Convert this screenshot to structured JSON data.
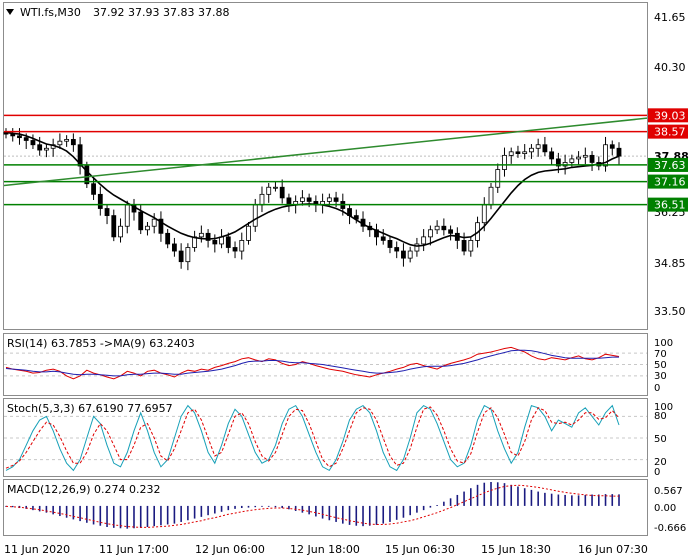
{
  "main": {
    "header": {
      "arrow_icon": "triangle-down-icon",
      "symbol": "WTI.fs,M30",
      "ohlc": "37.92 37.93 37.83 37.88"
    },
    "price_labels": [
      "41.65",
      "40.30",
      "36.25",
      "34.85",
      "33.50"
    ],
    "level_labels": [
      {
        "text": "39.03",
        "price": 39.03,
        "color": "#e00000"
      },
      {
        "text": "38.57",
        "price": 38.57,
        "color": "#e00000"
      },
      {
        "text": "37.88",
        "price": 37.88,
        "color": "#000000"
      },
      {
        "text": "37.63",
        "price": 37.63,
        "color": "#008000"
      },
      {
        "text": "37.16",
        "price": 37.16,
        "color": "#008000"
      },
      {
        "text": "36.51",
        "price": 36.51,
        "color": "#008000"
      }
    ]
  },
  "rsi": {
    "label": "RSI(14) 63.7853  ->MA(9) 63.2403",
    "scale_labels": [
      "100",
      "70",
      "50",
      "30",
      "0"
    ]
  },
  "stoch": {
    "label": "Stoch(5,3,3) 67.6190 77.6957",
    "scale_labels": [
      "100",
      "80",
      "50",
      "20",
      "0"
    ]
  },
  "macd": {
    "label": "MACD(12,26,9) 0.274 0.232",
    "scale_labels": [
      "0.567",
      "0.00",
      "-0.666"
    ]
  },
  "x_labels": [
    "11 Jun 2020",
    "11 Jun 17:00",
    "12 Jun 06:00",
    "12 Jun 18:00",
    "15 Jun 06:30",
    "15 Jun 18:30",
    "16 Jun 07:30"
  ],
  "colors": {
    "resistance": "#e00000",
    "support": "#008000",
    "trend": "#2e8b2e",
    "ma": "#000000",
    "rsi": "#e00000",
    "rsi_ma": "#1f1fb0",
    "stoch_main": "#17a0b8",
    "stoch_signal": "#e00000",
    "macd_hist": "#1a1a80",
    "macd_signal": "#e00000"
  },
  "chart_data": [
    {
      "type": "line",
      "name": "main",
      "xlabels": [
        "11 Jun 2020",
        "11 Jun 17:00",
        "12 Jun 06:00",
        "12 Jun 18:00",
        "15 Jun 06:30",
        "15 Jun 18:30",
        "16 Jun 07:30"
      ],
      "ylim": [
        33.0,
        42.2
      ],
      "y_ticks": [
        41.65,
        40.3,
        36.25,
        34.85,
        33.5
      ],
      "price": [
        38.5,
        38.45,
        38.4,
        38.32,
        38.2,
        38.05,
        38.1,
        38.2,
        38.3,
        38.35,
        38.2,
        37.6,
        37.1,
        36.8,
        36.4,
        36.2,
        35.6,
        35.9,
        36.5,
        36.3,
        35.8,
        35.9,
        36.1,
        35.7,
        35.4,
        35.2,
        34.9,
        35.3,
        35.6,
        35.7,
        35.5,
        35.4,
        35.6,
        35.3,
        35.2,
        35.5,
        35.9,
        36.5,
        36.8,
        37.0,
        37.0,
        36.7,
        36.5,
        36.6,
        36.7,
        36.6,
        36.5,
        36.6,
        36.7,
        36.6,
        36.4,
        36.2,
        36.1,
        35.9,
        35.8,
        35.6,
        35.5,
        35.3,
        35.2,
        35.0,
        35.2,
        35.4,
        35.6,
        35.8,
        35.9,
        35.8,
        35.7,
        35.5,
        35.2,
        35.5,
        36.0,
        36.5,
        37.0,
        37.5,
        37.9,
        38.0,
        37.95,
        38.0,
        38.1,
        38.2,
        38.0,
        37.8,
        37.6,
        37.7,
        37.8,
        37.85,
        37.9,
        37.7,
        37.6,
        38.2,
        38.1,
        37.88
      ],
      "ma": [
        38.55,
        38.52,
        38.5,
        38.45,
        38.38,
        38.3,
        38.22,
        38.18,
        38.12,
        38.02,
        37.86,
        37.66,
        37.45,
        37.26,
        37.08,
        36.92,
        36.78,
        36.67,
        36.56,
        36.45,
        36.34,
        36.24,
        36.14,
        36.02,
        35.9,
        35.8,
        35.7,
        35.63,
        35.58,
        35.55,
        35.54,
        35.55,
        35.6,
        35.66,
        35.74,
        35.86,
        35.98,
        36.1,
        36.2,
        36.3,
        36.38,
        36.44,
        36.48,
        36.5,
        36.52,
        36.53,
        36.52,
        36.5,
        36.46,
        36.4,
        36.32,
        36.2,
        36.08,
        35.96,
        35.86,
        35.78,
        35.7,
        35.62,
        35.55,
        35.46,
        35.38,
        35.34,
        35.36,
        35.42,
        35.5,
        35.58,
        35.64,
        35.62,
        35.58,
        35.6,
        35.72,
        35.9,
        36.12,
        36.36,
        36.6,
        36.84,
        37.05,
        37.22,
        37.34,
        37.42,
        37.46,
        37.48,
        37.5,
        37.52,
        37.56,
        37.58,
        37.6,
        37.62,
        37.66,
        37.7,
        37.8,
        37.88
      ],
      "levels": {
        "resistance": [
          39.03,
          38.57
        ],
        "support": [
          37.63,
          37.16,
          36.51
        ],
        "last": 37.88
      },
      "trendline": [
        [
          0,
          37.05
        ],
        [
          1,
          38.95
        ]
      ]
    },
    {
      "type": "line",
      "name": "RSI(14)",
      "ylim": [
        0,
        100
      ],
      "levels": [
        100,
        70,
        50,
        30,
        0
      ],
      "series": [
        {
          "name": "RSI(14)",
          "values": [
            45,
            42,
            40,
            38,
            35,
            36,
            40,
            42,
            38,
            30,
            25,
            30,
            40,
            35,
            32,
            28,
            25,
            30,
            38,
            35,
            30,
            38,
            40,
            35,
            32,
            28,
            35,
            40,
            38,
            42,
            40,
            45,
            48,
            52,
            55,
            60,
            62,
            58,
            55,
            60,
            58,
            52,
            48,
            50,
            55,
            52,
            48,
            45,
            42,
            40,
            38,
            35,
            32,
            30,
            28,
            32,
            35,
            38,
            42,
            45,
            50,
            52,
            48,
            45,
            42,
            48,
            52,
            55,
            58,
            62,
            68,
            70,
            72,
            75,
            78,
            80,
            76,
            72,
            65,
            60,
            58,
            62,
            60,
            58,
            62,
            65,
            60,
            58,
            62,
            68,
            66,
            64
          ]
        },
        {
          "name": "MA(9)",
          "values": [
            43,
            42,
            41,
            40,
            38,
            37,
            37,
            38,
            37,
            35,
            33,
            32,
            33,
            33,
            32,
            31,
            30,
            30,
            32,
            33,
            33,
            34,
            35,
            35,
            34,
            33,
            33,
            35,
            36,
            37,
            38,
            40,
            42,
            45,
            48,
            52,
            55,
            56,
            56,
            57,
            57,
            56,
            54,
            53,
            53,
            52,
            51,
            50,
            48,
            46,
            44,
            42,
            40,
            38,
            36,
            35,
            35,
            36,
            37,
            39,
            42,
            44,
            46,
            47,
            47,
            47,
            48,
            50,
            52,
            55,
            58,
            62,
            65,
            68,
            71,
            74,
            75,
            75,
            74,
            72,
            69,
            66,
            64,
            62,
            61,
            61,
            61,
            61,
            61,
            62,
            63,
            63
          ]
        }
      ]
    },
    {
      "type": "line",
      "name": "Stoch(5,3,3)",
      "ylim": [
        0,
        100
      ],
      "levels": [
        100,
        80,
        50,
        20,
        0
      ],
      "series": [
        {
          "name": "Stoch %K",
          "values": [
            5,
            10,
            20,
            40,
            60,
            75,
            80,
            60,
            35,
            15,
            5,
            20,
            50,
            80,
            70,
            40,
            15,
            10,
            30,
            60,
            85,
            60,
            30,
            10,
            20,
            50,
            80,
            95,
            85,
            60,
            30,
            15,
            40,
            70,
            90,
            80,
            55,
            30,
            15,
            20,
            40,
            70,
            90,
            95,
            80,
            55,
            30,
            10,
            5,
            20,
            45,
            75,
            90,
            95,
            85,
            60,
            30,
            10,
            5,
            20,
            50,
            85,
            95,
            90,
            70,
            45,
            20,
            10,
            15,
            40,
            75,
            95,
            90,
            60,
            35,
            15,
            30,
            65,
            95,
            92,
            80,
            60,
            75,
            70,
            65,
            85,
            92,
            80,
            68,
            85,
            95,
            68
          ]
        },
        {
          "name": "Stoch %D",
          "values": [
            8,
            12,
            18,
            30,
            45,
            60,
            72,
            68,
            52,
            32,
            15,
            15,
            30,
            55,
            70,
            60,
            40,
            20,
            20,
            40,
            65,
            70,
            50,
            25,
            18,
            35,
            60,
            85,
            90,
            75,
            50,
            25,
            30,
            55,
            80,
            85,
            70,
            45,
            25,
            18,
            30,
            55,
            80,
            90,
            88,
            70,
            45,
            20,
            10,
            15,
            35,
            60,
            85,
            92,
            90,
            75,
            50,
            25,
            12,
            15,
            35,
            65,
            90,
            93,
            82,
            60,
            35,
            18,
            15,
            28,
            58,
            85,
            92,
            78,
            55,
            30,
            25,
            45,
            75,
            92,
            88,
            72,
            70,
            72,
            68,
            75,
            85,
            85,
            76,
            78,
            88,
            78
          ]
        }
      ]
    },
    {
      "type": "bar",
      "name": "MACD(12,26,9)",
      "ylim": [
        -0.666,
        0.567
      ],
      "y_ticks": [
        0.567,
        0.0,
        -0.666
      ],
      "series": [
        {
          "name": "MACD",
          "values": [
            -0.02,
            -0.03,
            -0.05,
            -0.07,
            -0.1,
            -0.13,
            -0.16,
            -0.2,
            -0.24,
            -0.28,
            -0.32,
            -0.36,
            -0.4,
            -0.44,
            -0.47,
            -0.5,
            -0.52,
            -0.53,
            -0.54,
            -0.53,
            -0.52,
            -0.5,
            -0.48,
            -0.46,
            -0.44,
            -0.42,
            -0.38,
            -0.34,
            -0.3,
            -0.26,
            -0.22,
            -0.18,
            -0.14,
            -0.1,
            -0.07,
            -0.05,
            -0.04,
            -0.03,
            -0.02,
            -0.02,
            -0.03,
            -0.05,
            -0.08,
            -0.12,
            -0.16,
            -0.2,
            -0.25,
            -0.3,
            -0.34,
            -0.38,
            -0.42,
            -0.45,
            -0.47,
            -0.48,
            -0.47,
            -0.45,
            -0.42,
            -0.38,
            -0.33,
            -0.28,
            -0.22,
            -0.16,
            -0.1,
            -0.04,
            0.02,
            0.1,
            0.18,
            0.26,
            0.34,
            0.42,
            0.5,
            0.55,
            0.567,
            0.56,
            0.54,
            0.5,
            0.46,
            0.42,
            0.38,
            0.34,
            0.31,
            0.29,
            0.27,
            0.26,
            0.25,
            0.25,
            0.26,
            0.27,
            0.27,
            0.28,
            0.28,
            0.274
          ]
        },
        {
          "name": "Signal",
          "values": [
            -0.01,
            -0.02,
            -0.03,
            -0.05,
            -0.07,
            -0.09,
            -0.12,
            -0.15,
            -0.18,
            -0.21,
            -0.25,
            -0.28,
            -0.32,
            -0.35,
            -0.39,
            -0.42,
            -0.45,
            -0.47,
            -0.49,
            -0.5,
            -0.51,
            -0.51,
            -0.5,
            -0.49,
            -0.48,
            -0.46,
            -0.44,
            -0.41,
            -0.38,
            -0.35,
            -0.31,
            -0.28,
            -0.24,
            -0.2,
            -0.17,
            -0.14,
            -0.11,
            -0.09,
            -0.07,
            -0.06,
            -0.05,
            -0.05,
            -0.06,
            -0.08,
            -0.1,
            -0.13,
            -0.16,
            -0.2,
            -0.24,
            -0.28,
            -0.31,
            -0.35,
            -0.38,
            -0.41,
            -0.43,
            -0.44,
            -0.44,
            -0.43,
            -0.41,
            -0.38,
            -0.35,
            -0.31,
            -0.26,
            -0.21,
            -0.16,
            -0.1,
            -0.04,
            0.03,
            0.1,
            0.17,
            0.24,
            0.31,
            0.37,
            0.42,
            0.46,
            0.48,
            0.49,
            0.48,
            0.46,
            0.44,
            0.41,
            0.38,
            0.35,
            0.32,
            0.3,
            0.28,
            0.26,
            0.25,
            0.24,
            0.24,
            0.23,
            0.232
          ]
        }
      ]
    }
  ]
}
